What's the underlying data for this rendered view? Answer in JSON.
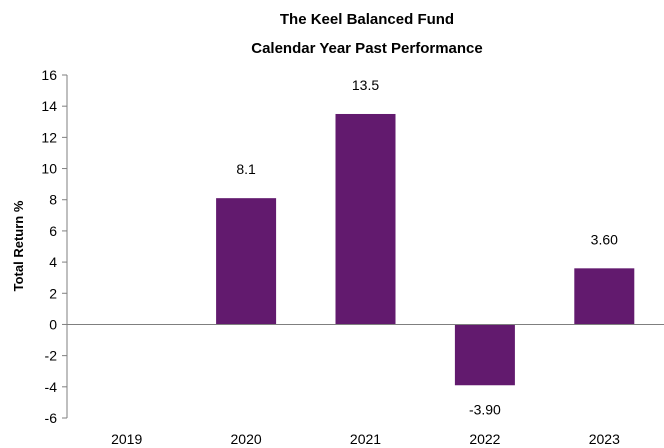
{
  "chart_data": {
    "type": "bar",
    "title": "The Keel Balanced Fund",
    "subtitle": "Calendar Year Past Performance",
    "ylabel": "Total Return %",
    "xlabel": "",
    "categories": [
      "2019",
      "2020",
      "2021",
      "2022",
      "2023"
    ],
    "values": [
      null,
      8.1,
      13.5,
      -3.9,
      3.6
    ],
    "data_labels": [
      "",
      "8.1",
      "13.5",
      "-3.90",
      "3.60"
    ],
    "ylim": [
      -6,
      16
    ],
    "yticks": [
      "16",
      "14",
      "12",
      "10",
      "8",
      "6",
      "4",
      "2",
      "0",
      "-2",
      "-4",
      "-6"
    ],
    "ytick_values": [
      16,
      14,
      12,
      10,
      8,
      6,
      4,
      2,
      0,
      -2,
      -4,
      -6
    ],
    "grid": false,
    "legend": "none",
    "bar_color": "#621a6e"
  }
}
